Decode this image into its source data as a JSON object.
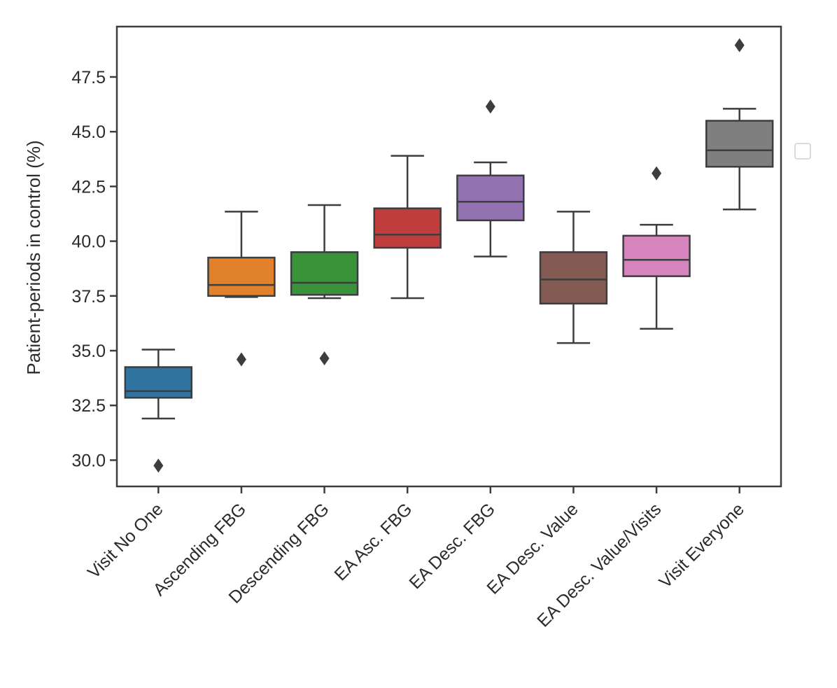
{
  "chart_data": {
    "type": "boxplot",
    "title": "",
    "xlabel": "",
    "ylabel": "Patient-periods in control (%)",
    "ylim": [
      28.8,
      49.8
    ],
    "yticks": [
      "30.0",
      "32.5",
      "35.0",
      "37.5",
      "40.0",
      "42.5",
      "45.0",
      "47.5"
    ],
    "legend": "empty legend box at right",
    "categories": [
      "Visit No One",
      "Ascending FBG",
      "Descending FBG",
      "EA Asc. FBG",
      "EA Desc. FBG",
      "EA Desc. Value",
      "EA Desc. Value/Visits",
      "Visit Everyone"
    ],
    "colors": [
      "#3274a1",
      "#e1812c",
      "#3a923a",
      "#c03d3e",
      "#9372b2",
      "#845b53",
      "#d684bd",
      "#7f7f7f"
    ],
    "boxes": [
      {
        "whisker_low": 31.9,
        "q1": 32.85,
        "median": 33.15,
        "q3": 34.25,
        "whisker_high": 35.05,
        "outliers": [
          29.75
        ]
      },
      {
        "whisker_low": 37.45,
        "q1": 37.5,
        "median": 38.0,
        "q3": 39.25,
        "whisker_high": 41.35,
        "outliers": [
          34.6
        ]
      },
      {
        "whisker_low": 37.4,
        "q1": 37.55,
        "median": 38.1,
        "q3": 39.5,
        "whisker_high": 41.65,
        "outliers": [
          34.65
        ]
      },
      {
        "whisker_low": 37.4,
        "q1": 39.7,
        "median": 40.3,
        "q3": 41.5,
        "whisker_high": 43.9,
        "outliers": []
      },
      {
        "whisker_low": 39.3,
        "q1": 40.95,
        "median": 41.8,
        "q3": 43.0,
        "whisker_high": 43.6,
        "outliers": [
          46.15
        ]
      },
      {
        "whisker_low": 35.35,
        "q1": 37.15,
        "median": 38.25,
        "q3": 39.5,
        "whisker_high": 41.35,
        "outliers": []
      },
      {
        "whisker_low": 36.0,
        "q1": 38.4,
        "median": 39.15,
        "q3": 40.25,
        "whisker_high": 40.75,
        "outliers": [
          43.1
        ]
      },
      {
        "whisker_low": 41.45,
        "q1": 43.4,
        "median": 44.15,
        "q3": 45.5,
        "whisker_high": 46.05,
        "outliers": [
          48.95
        ]
      }
    ]
  }
}
